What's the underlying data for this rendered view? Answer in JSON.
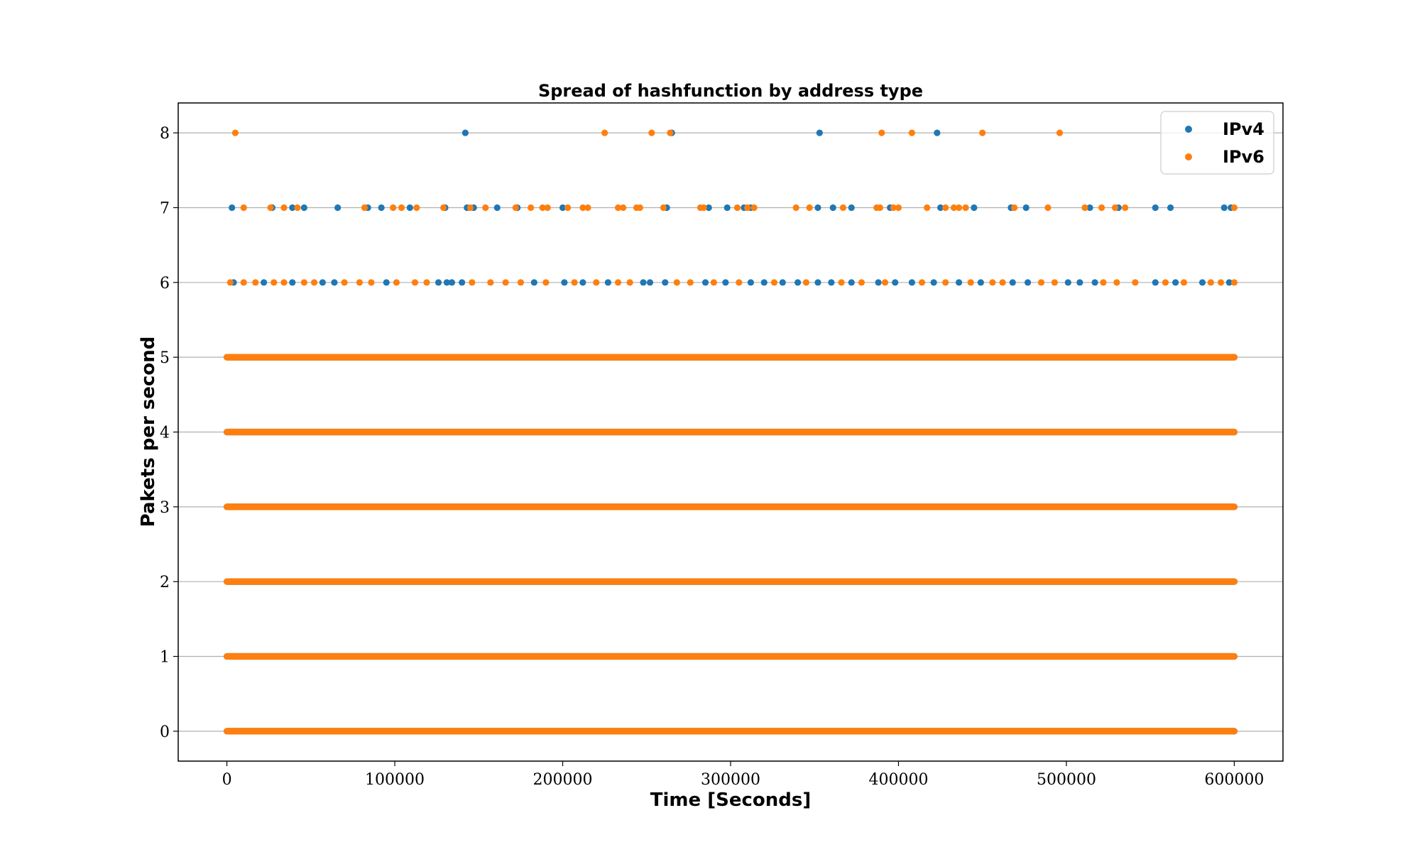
{
  "chart_data": {
    "type": "scatter",
    "title": "Spread of hashfunction by address type",
    "xlabel": "Time [Seconds]",
    "ylabel": "Pakets per second",
    "xlim": [
      -29000,
      629000
    ],
    "ylim": [
      -0.4,
      8.4
    ],
    "xticks": [
      0,
      100000,
      200000,
      300000,
      400000,
      500000,
      600000
    ],
    "xtick_labels": [
      "0",
      "100000",
      "200000",
      "300000",
      "400000",
      "500000",
      "600000"
    ],
    "yticks": [
      0,
      1,
      2,
      3,
      4,
      5,
      6,
      7,
      8
    ],
    "ytick_labels": [
      "0",
      "1",
      "2",
      "3",
      "4",
      "5",
      "6",
      "7",
      "8"
    ],
    "grid": "horizontal",
    "legend_position": "top-right",
    "series": [
      {
        "name": "IPv4",
        "color": "#1f77b4",
        "continuous_levels": {
          "values": [
            0,
            1,
            2,
            3,
            4,
            5
          ],
          "x_range": [
            0,
            600000
          ]
        },
        "points": [
          {
            "x": 142000,
            "y": 8
          },
          {
            "x": 265000,
            "y": 8
          },
          {
            "x": 353000,
            "y": 8
          },
          {
            "x": 423000,
            "y": 8
          },
          {
            "x": 3000,
            "y": 7
          },
          {
            "x": 27000,
            "y": 7
          },
          {
            "x": 39000,
            "y": 7
          },
          {
            "x": 46000,
            "y": 7
          },
          {
            "x": 66000,
            "y": 7
          },
          {
            "x": 84000,
            "y": 7
          },
          {
            "x": 92000,
            "y": 7
          },
          {
            "x": 109000,
            "y": 7
          },
          {
            "x": 130000,
            "y": 7
          },
          {
            "x": 143000,
            "y": 7
          },
          {
            "x": 147000,
            "y": 7
          },
          {
            "x": 161000,
            "y": 7
          },
          {
            "x": 173000,
            "y": 7
          },
          {
            "x": 200000,
            "y": 7
          },
          {
            "x": 262000,
            "y": 7
          },
          {
            "x": 287000,
            "y": 7
          },
          {
            "x": 298000,
            "y": 7
          },
          {
            "x": 308000,
            "y": 7
          },
          {
            "x": 312000,
            "y": 7
          },
          {
            "x": 352000,
            "y": 7
          },
          {
            "x": 361000,
            "y": 7
          },
          {
            "x": 372000,
            "y": 7
          },
          {
            "x": 395000,
            "y": 7
          },
          {
            "x": 425000,
            "y": 7
          },
          {
            "x": 445000,
            "y": 7
          },
          {
            "x": 467000,
            "y": 7
          },
          {
            "x": 476000,
            "y": 7
          },
          {
            "x": 514000,
            "y": 7
          },
          {
            "x": 531000,
            "y": 7
          },
          {
            "x": 553000,
            "y": 7
          },
          {
            "x": 562000,
            "y": 7
          },
          {
            "x": 594000,
            "y": 7
          },
          {
            "x": 598000,
            "y": 7
          },
          {
            "x": 4000,
            "y": 6
          },
          {
            "x": 22000,
            "y": 6
          },
          {
            "x": 39000,
            "y": 6
          },
          {
            "x": 57000,
            "y": 6
          },
          {
            "x": 64000,
            "y": 6
          },
          {
            "x": 95000,
            "y": 6
          },
          {
            "x": 126000,
            "y": 6
          },
          {
            "x": 131000,
            "y": 6
          },
          {
            "x": 134000,
            "y": 6
          },
          {
            "x": 140000,
            "y": 6
          },
          {
            "x": 183000,
            "y": 6
          },
          {
            "x": 201000,
            "y": 6
          },
          {
            "x": 212000,
            "y": 6
          },
          {
            "x": 227000,
            "y": 6
          },
          {
            "x": 248000,
            "y": 6
          },
          {
            "x": 252000,
            "y": 6
          },
          {
            "x": 261000,
            "y": 6
          },
          {
            "x": 285000,
            "y": 6
          },
          {
            "x": 297000,
            "y": 6
          },
          {
            "x": 312000,
            "y": 6
          },
          {
            "x": 320000,
            "y": 6
          },
          {
            "x": 331000,
            "y": 6
          },
          {
            "x": 340000,
            "y": 6
          },
          {
            "x": 352000,
            "y": 6
          },
          {
            "x": 360000,
            "y": 6
          },
          {
            "x": 372000,
            "y": 6
          },
          {
            "x": 388000,
            "y": 6
          },
          {
            "x": 398000,
            "y": 6
          },
          {
            "x": 408000,
            "y": 6
          },
          {
            "x": 421000,
            "y": 6
          },
          {
            "x": 436000,
            "y": 6
          },
          {
            "x": 449000,
            "y": 6
          },
          {
            "x": 468000,
            "y": 6
          },
          {
            "x": 477000,
            "y": 6
          },
          {
            "x": 501000,
            "y": 6
          },
          {
            "x": 508000,
            "y": 6
          },
          {
            "x": 517000,
            "y": 6
          },
          {
            "x": 553000,
            "y": 6
          },
          {
            "x": 565000,
            "y": 6
          },
          {
            "x": 581000,
            "y": 6
          },
          {
            "x": 597000,
            "y": 6
          }
        ]
      },
      {
        "name": "IPv6",
        "color": "#ff7f0e",
        "continuous_levels": {
          "values": [
            0,
            1,
            2,
            3,
            4,
            5
          ],
          "x_range": [
            0,
            600000
          ]
        },
        "points": [
          {
            "x": 5000,
            "y": 8
          },
          {
            "x": 225000,
            "y": 8
          },
          {
            "x": 253000,
            "y": 8
          },
          {
            "x": 264000,
            "y": 8
          },
          {
            "x": 390000,
            "y": 8
          },
          {
            "x": 408000,
            "y": 8
          },
          {
            "x": 450000,
            "y": 8
          },
          {
            "x": 496000,
            "y": 8
          },
          {
            "x": 10000,
            "y": 7
          },
          {
            "x": 26000,
            "y": 7
          },
          {
            "x": 34000,
            "y": 7
          },
          {
            "x": 42000,
            "y": 7
          },
          {
            "x": 82000,
            "y": 7
          },
          {
            "x": 99000,
            "y": 7
          },
          {
            "x": 104000,
            "y": 7
          },
          {
            "x": 113000,
            "y": 7
          },
          {
            "x": 129000,
            "y": 7
          },
          {
            "x": 145000,
            "y": 7
          },
          {
            "x": 154000,
            "y": 7
          },
          {
            "x": 172000,
            "y": 7
          },
          {
            "x": 181000,
            "y": 7
          },
          {
            "x": 188000,
            "y": 7
          },
          {
            "x": 191000,
            "y": 7
          },
          {
            "x": 203000,
            "y": 7
          },
          {
            "x": 212000,
            "y": 7
          },
          {
            "x": 215000,
            "y": 7
          },
          {
            "x": 233000,
            "y": 7
          },
          {
            "x": 236000,
            "y": 7
          },
          {
            "x": 244000,
            "y": 7
          },
          {
            "x": 246000,
            "y": 7
          },
          {
            "x": 260000,
            "y": 7
          },
          {
            "x": 282000,
            "y": 7
          },
          {
            "x": 284000,
            "y": 7
          },
          {
            "x": 304000,
            "y": 7
          },
          {
            "x": 310000,
            "y": 7
          },
          {
            "x": 314000,
            "y": 7
          },
          {
            "x": 339000,
            "y": 7
          },
          {
            "x": 347000,
            "y": 7
          },
          {
            "x": 367000,
            "y": 7
          },
          {
            "x": 387000,
            "y": 7
          },
          {
            "x": 389000,
            "y": 7
          },
          {
            "x": 397000,
            "y": 7
          },
          {
            "x": 400000,
            "y": 7
          },
          {
            "x": 417000,
            "y": 7
          },
          {
            "x": 428000,
            "y": 7
          },
          {
            "x": 433000,
            "y": 7
          },
          {
            "x": 436000,
            "y": 7
          },
          {
            "x": 440000,
            "y": 7
          },
          {
            "x": 469000,
            "y": 7
          },
          {
            "x": 489000,
            "y": 7
          },
          {
            "x": 511000,
            "y": 7
          },
          {
            "x": 521000,
            "y": 7
          },
          {
            "x": 529000,
            "y": 7
          },
          {
            "x": 535000,
            "y": 7
          },
          {
            "x": 600000,
            "y": 7
          },
          {
            "x": 2000,
            "y": 6
          },
          {
            "x": 10000,
            "y": 6
          },
          {
            "x": 17000,
            "y": 6
          },
          {
            "x": 28000,
            "y": 6
          },
          {
            "x": 34000,
            "y": 6
          },
          {
            "x": 46000,
            "y": 6
          },
          {
            "x": 52000,
            "y": 6
          },
          {
            "x": 70000,
            "y": 6
          },
          {
            "x": 79000,
            "y": 6
          },
          {
            "x": 86000,
            "y": 6
          },
          {
            "x": 101000,
            "y": 6
          },
          {
            "x": 112000,
            "y": 6
          },
          {
            "x": 119000,
            "y": 6
          },
          {
            "x": 146000,
            "y": 6
          },
          {
            "x": 157000,
            "y": 6
          },
          {
            "x": 166000,
            "y": 6
          },
          {
            "x": 175000,
            "y": 6
          },
          {
            "x": 190000,
            "y": 6
          },
          {
            "x": 207000,
            "y": 6
          },
          {
            "x": 220000,
            "y": 6
          },
          {
            "x": 233000,
            "y": 6
          },
          {
            "x": 240000,
            "y": 6
          },
          {
            "x": 268000,
            "y": 6
          },
          {
            "x": 276000,
            "y": 6
          },
          {
            "x": 290000,
            "y": 6
          },
          {
            "x": 305000,
            "y": 6
          },
          {
            "x": 326000,
            "y": 6
          },
          {
            "x": 345000,
            "y": 6
          },
          {
            "x": 366000,
            "y": 6
          },
          {
            "x": 378000,
            "y": 6
          },
          {
            "x": 392000,
            "y": 6
          },
          {
            "x": 414000,
            "y": 6
          },
          {
            "x": 428000,
            "y": 6
          },
          {
            "x": 443000,
            "y": 6
          },
          {
            "x": 456000,
            "y": 6
          },
          {
            "x": 462000,
            "y": 6
          },
          {
            "x": 485000,
            "y": 6
          },
          {
            "x": 493000,
            "y": 6
          },
          {
            "x": 522000,
            "y": 6
          },
          {
            "x": 530000,
            "y": 6
          },
          {
            "x": 541000,
            "y": 6
          },
          {
            "x": 559000,
            "y": 6
          },
          {
            "x": 570000,
            "y": 6
          },
          {
            "x": 586000,
            "y": 6
          },
          {
            "x": 592000,
            "y": 6
          },
          {
            "x": 600000,
            "y": 6
          }
        ]
      }
    ]
  }
}
